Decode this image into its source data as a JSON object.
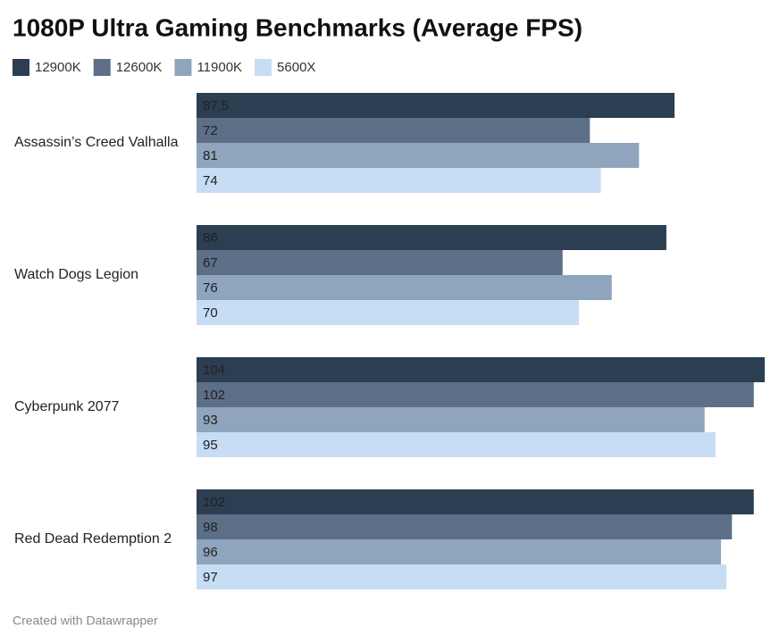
{
  "chart_data": {
    "type": "bar",
    "orientation": "horizontal",
    "title": "1080P Ultra Gaming Benchmarks (Average FPS)",
    "categories": [
      "Assassin’s Creed Valhalla",
      "Watch Dogs Legion",
      "Cyberpunk 2077",
      "Red Dead Redemption 2"
    ],
    "series": [
      {
        "name": "12900K",
        "color": "#2c3e52",
        "values": [
          87.5,
          86,
          104,
          102
        ]
      },
      {
        "name": "12600K",
        "color": "#5c6f87",
        "values": [
          72,
          67,
          102,
          98
        ]
      },
      {
        "name": "11900K",
        "color": "#8fa5bd",
        "values": [
          81,
          76,
          93,
          96
        ]
      },
      {
        "name": "5600X",
        "color": "#c6ddf4",
        "values": [
          74,
          70,
          95,
          97
        ]
      }
    ],
    "source": "Created with Datawrapper"
  }
}
